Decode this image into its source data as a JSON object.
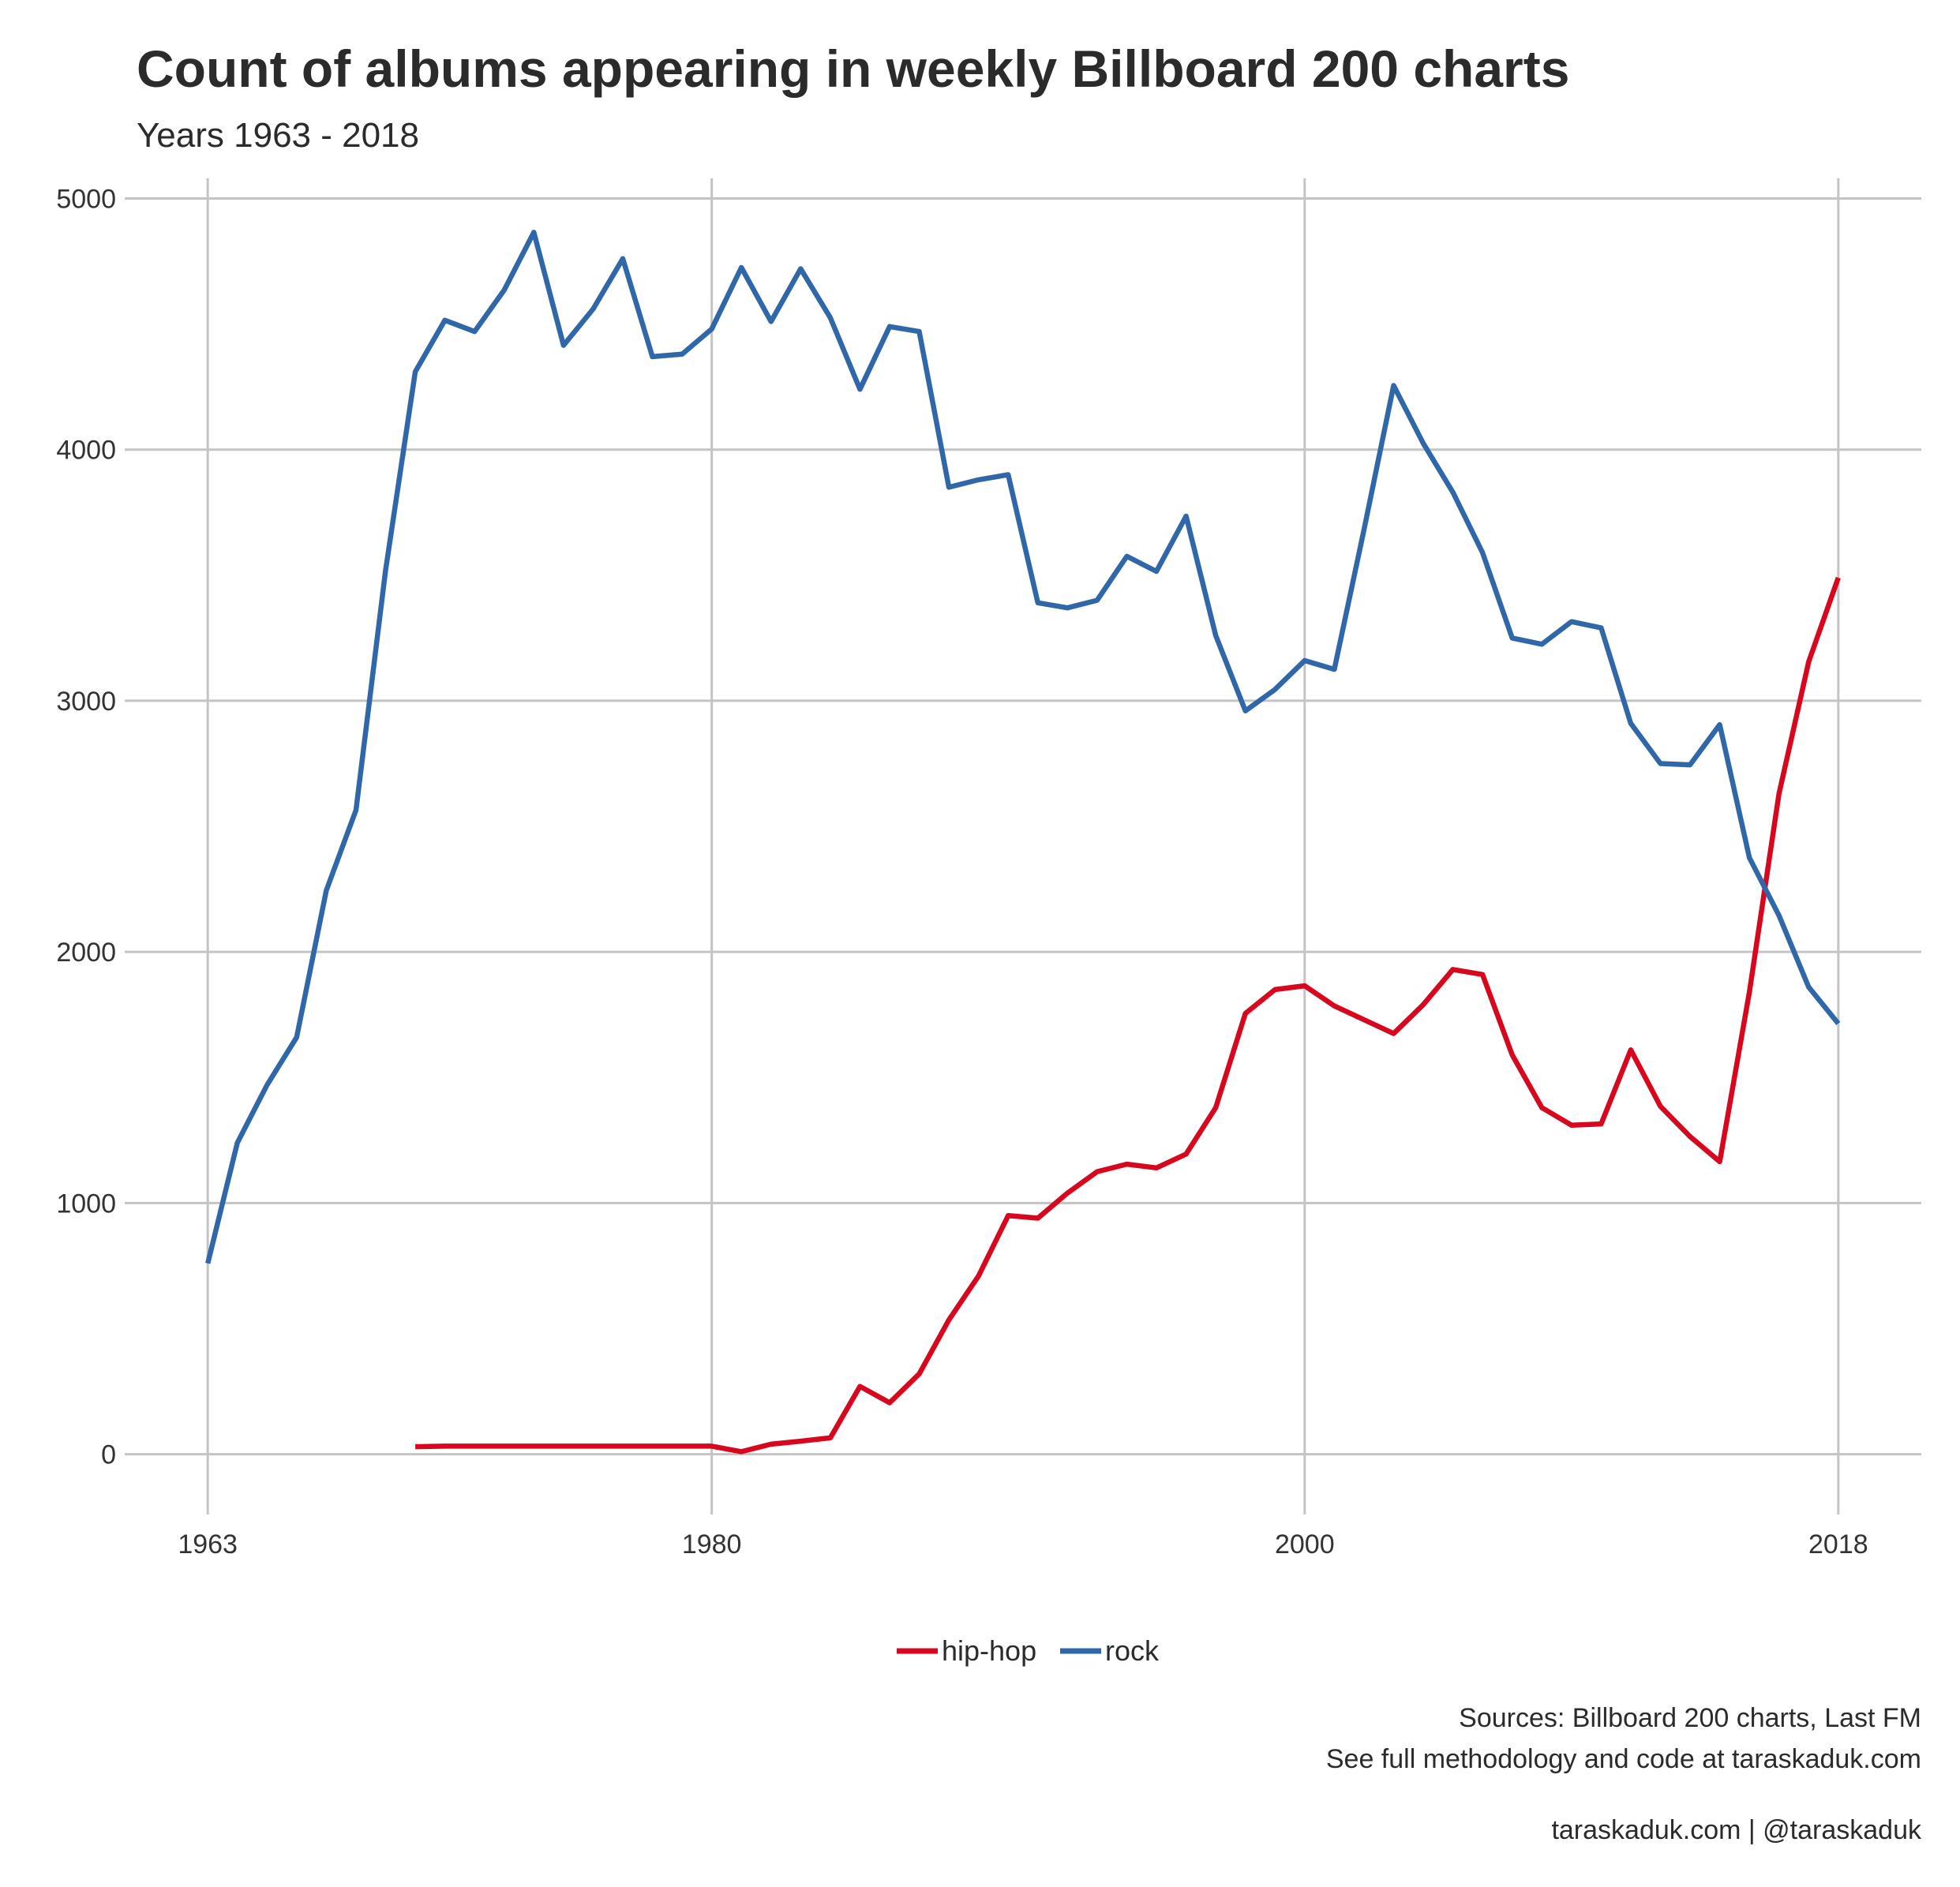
{
  "chart_data": {
    "type": "line",
    "title": "Count of albums appearing in weekly Billboard 200 charts",
    "subtitle": "Years 1963 - 2018",
    "xlabel": "",
    "ylabel": "",
    "xlim": [
      1960.2,
      2020.8
    ],
    "ylim": [
      -240,
      5080
    ],
    "x_ticks": [
      1963,
      1980,
      2000,
      2018
    ],
    "y_ticks": [
      0,
      1000,
      2000,
      3000,
      4000,
      5000
    ],
    "grid": true,
    "legend_position": "bottom",
    "series": [
      {
        "name": "hip-hop",
        "color": "#d7071e",
        "x": [
          1970,
          1971,
          1972,
          1973,
          1974,
          1975,
          1976,
          1977,
          1978,
          1979,
          1980,
          1981,
          1982,
          1983,
          1984,
          1985,
          1986,
          1987,
          1988,
          1989,
          1990,
          1991,
          1992,
          1993,
          1994,
          1995,
          1996,
          1997,
          1998,
          1999,
          2000,
          2001,
          2002,
          2003,
          2004,
          2005,
          2006,
          2007,
          2008,
          2009,
          2010,
          2011,
          2012,
          2013,
          2014,
          2015,
          2016,
          2017,
          2018
        ],
        "values": [
          30,
          32,
          32,
          32,
          32,
          32,
          32,
          32,
          32,
          32,
          32,
          10,
          40,
          52,
          65,
          270,
          205,
          320,
          535,
          710,
          950,
          940,
          1040,
          1125,
          1155,
          1140,
          1195,
          1380,
          1755,
          1850,
          1865,
          1785,
          1730,
          1675,
          1790,
          1930,
          1910,
          1590,
          1380,
          1310,
          1315,
          1610,
          1385,
          1265,
          1165,
          1840,
          2630,
          3155,
          3490
        ]
      },
      {
        "name": "rock",
        "color": "#2f67a8",
        "x": [
          1963,
          1964,
          1965,
          1966,
          1967,
          1968,
          1969,
          1970,
          1971,
          1972,
          1973,
          1974,
          1975,
          1976,
          1977,
          1978,
          1979,
          1980,
          1981,
          1982,
          1983,
          1984,
          1985,
          1986,
          1987,
          1988,
          1989,
          1990,
          1991,
          1992,
          1993,
          1994,
          1995,
          1996,
          1997,
          1998,
          1999,
          2000,
          2001,
          2002,
          2003,
          2004,
          2005,
          2006,
          2007,
          2008,
          2009,
          2010,
          2011,
          2012,
          2013,
          2014,
          2015,
          2016,
          2017,
          2018
        ],
        "values": [
          760,
          1240,
          1470,
          1660,
          2245,
          2565,
          3520,
          4310,
          4515,
          4470,
          4635,
          4865,
          4415,
          4560,
          4760,
          4370,
          4380,
          4480,
          4725,
          4510,
          4720,
          4525,
          4240,
          4490,
          4470,
          3850,
          3880,
          3900,
          3390,
          3370,
          3400,
          3575,
          3515,
          3735,
          3260,
          2960,
          3045,
          3160,
          3125,
          3680,
          4255,
          4025,
          3830,
          3590,
          3250,
          3225,
          3315,
          3290,
          2910,
          2750,
          2745,
          2905,
          2375,
          2145,
          1860,
          1715
        ]
      }
    ]
  },
  "legend": {
    "items": [
      {
        "label": "hip-hop",
        "color": "#d7071e"
      },
      {
        "label": "rock",
        "color": "#2f67a8"
      }
    ]
  },
  "caption": {
    "line1": "Sources: Billboard 200 charts, Last FM",
    "line2": "See full methodology and code at taraskaduk.com",
    "line3": "taraskaduk.com | @taraskaduk"
  }
}
